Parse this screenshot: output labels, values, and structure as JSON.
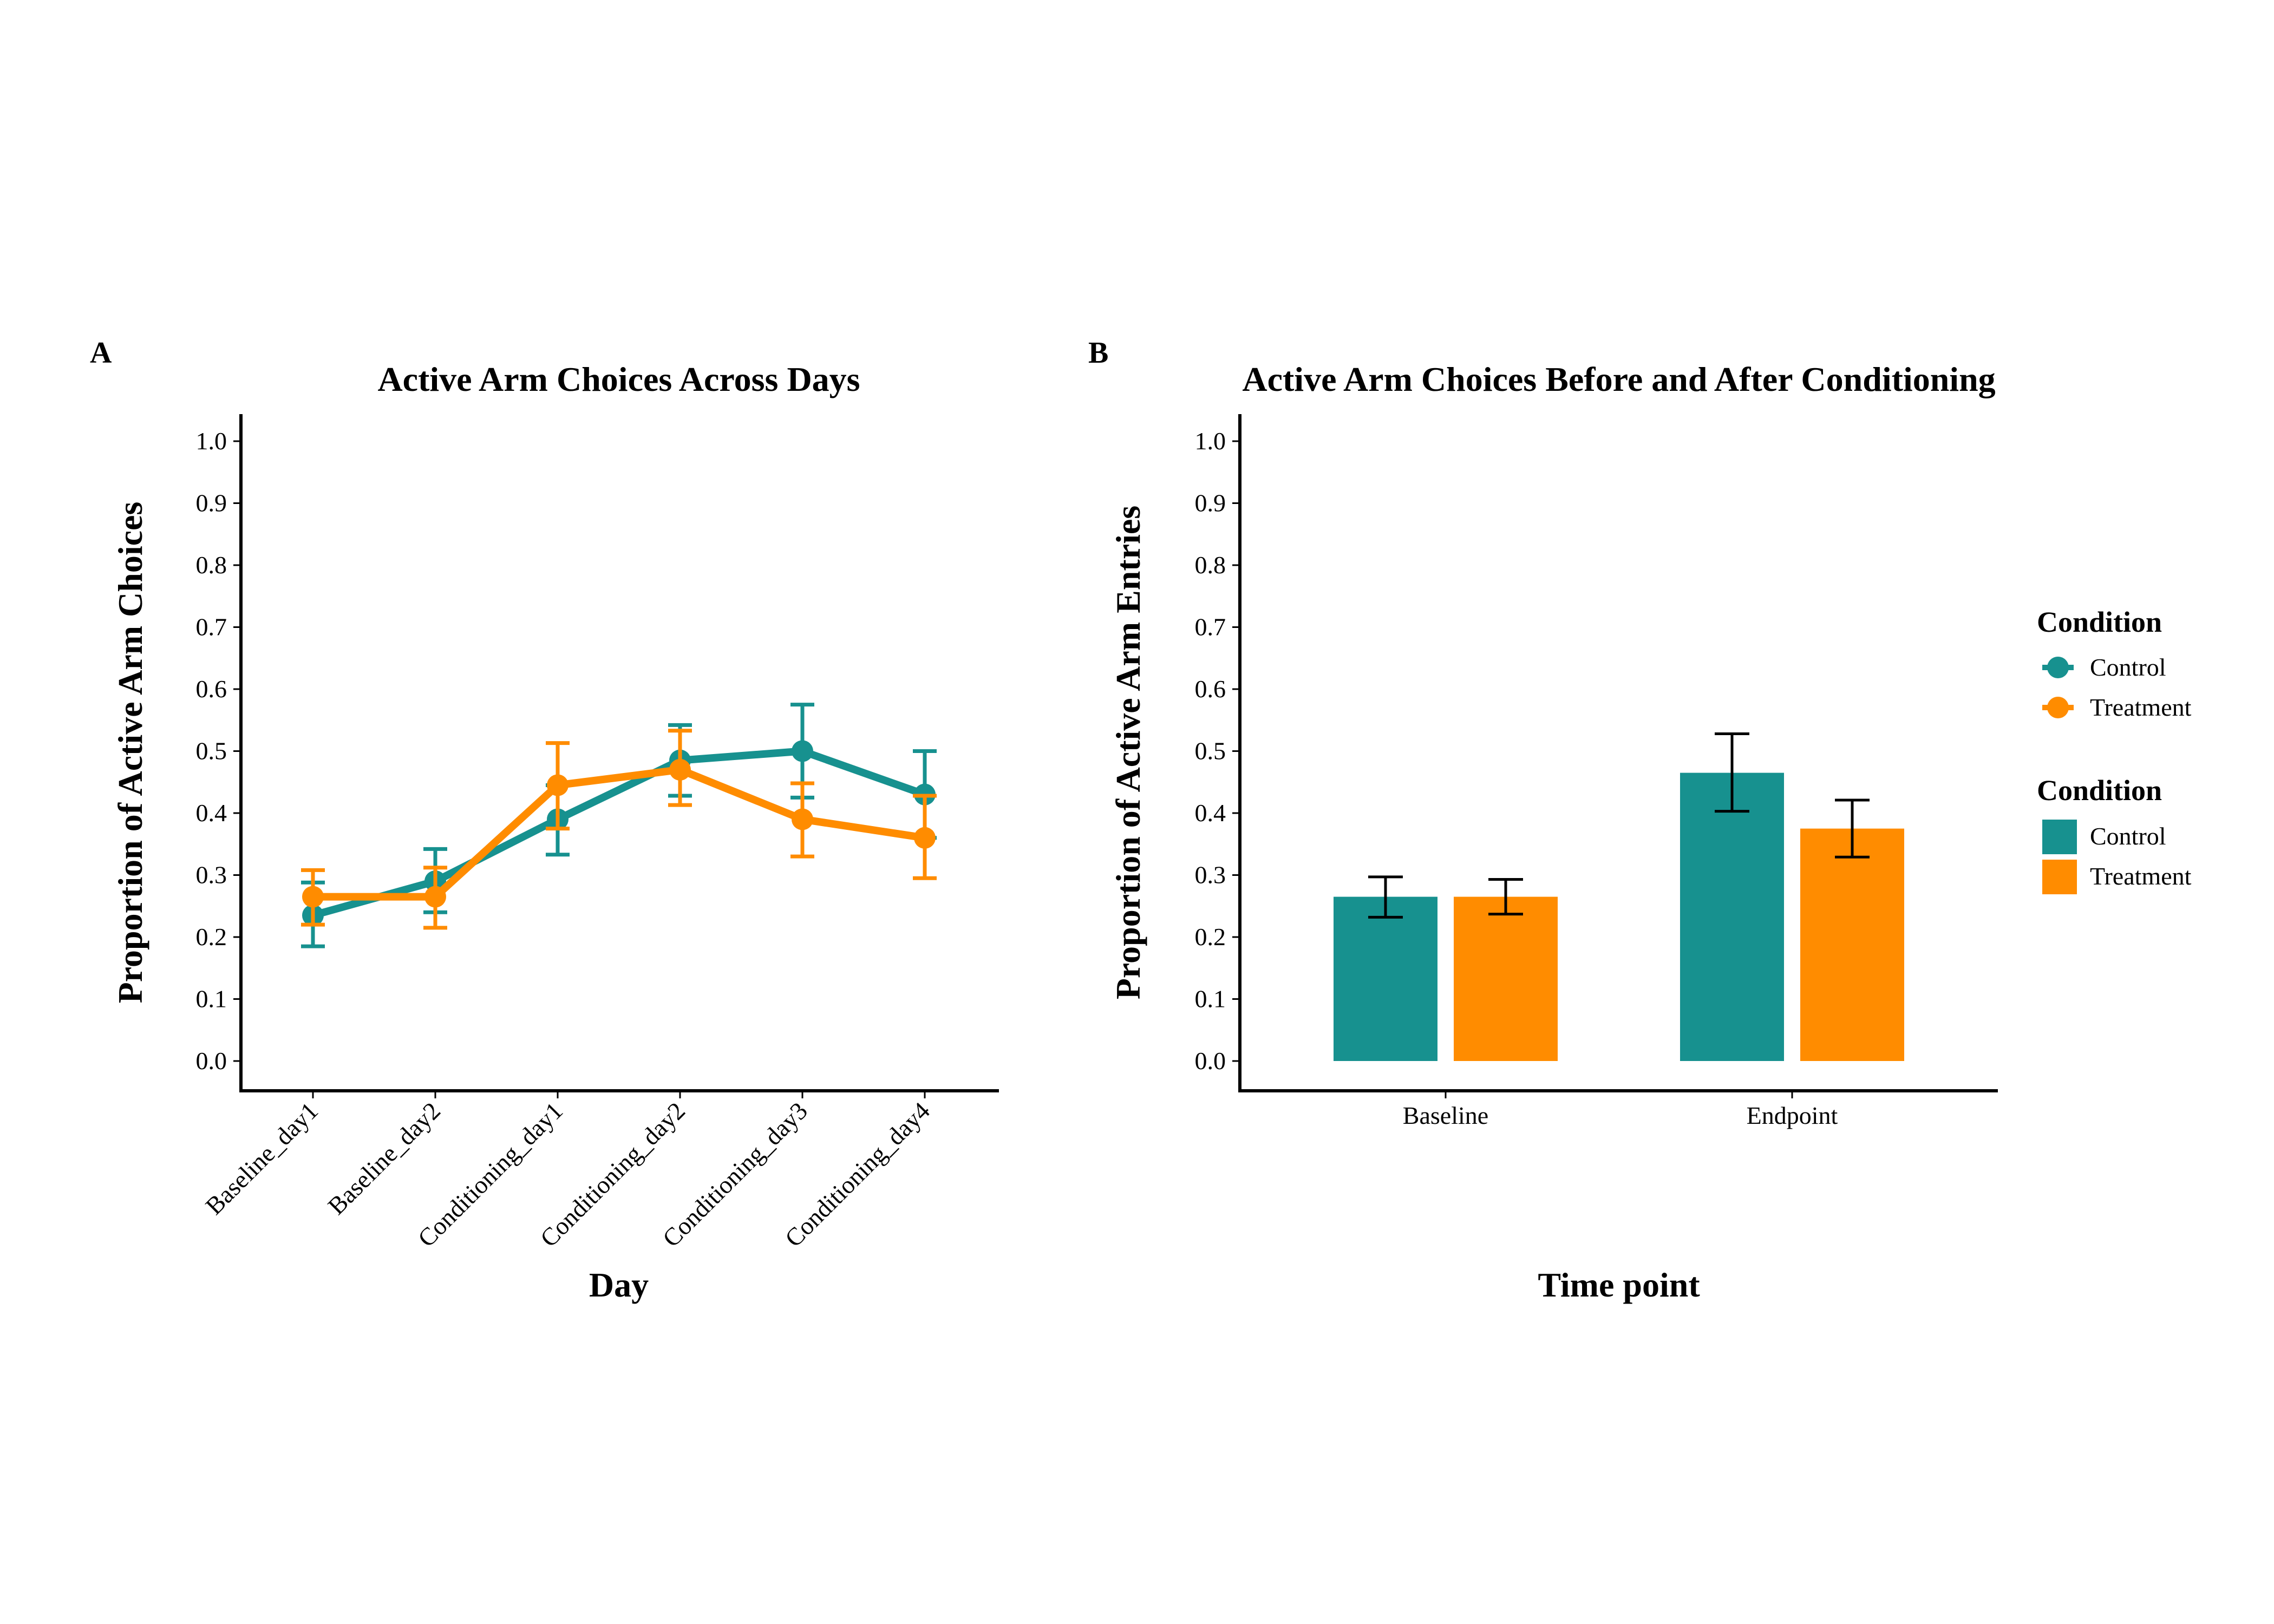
{
  "colors": {
    "control": "#17918F",
    "treatment": "#FF8C00",
    "errorbar_b": "#000000"
  },
  "legend": {
    "title_points": "Condition",
    "title_bars": "Condition",
    "items": [
      "Control",
      "Treatment"
    ]
  },
  "chart_data": [
    {
      "panel": "A",
      "type": "line",
      "title": "Active Arm Choices Across Days",
      "xlabel": "Day",
      "ylabel": "Proportion of Active Arm Choices",
      "ylim": [
        0,
        1
      ],
      "yticks": [
        "0.0",
        "0.1",
        "0.2",
        "0.3",
        "0.4",
        "0.5",
        "0.6",
        "0.7",
        "0.8",
        "0.9",
        "1.0"
      ],
      "categories": [
        "Baseline_day1",
        "Baseline_day2",
        "Conditioning_day1",
        "Conditioning_day2",
        "Conditioning_day3",
        "Conditioning_day4"
      ],
      "series": [
        {
          "name": "Control",
          "values": [
            0.235,
            0.29,
            0.39,
            0.485,
            0.5,
            0.43
          ],
          "err_low": [
            0.185,
            0.24,
            0.333,
            0.428,
            0.425,
            0.36
          ],
          "err_high": [
            0.288,
            0.342,
            0.445,
            0.542,
            0.575,
            0.5
          ]
        },
        {
          "name": "Treatment",
          "values": [
            0.265,
            0.265,
            0.445,
            0.47,
            0.39,
            0.36
          ],
          "err_low": [
            0.22,
            0.215,
            0.375,
            0.413,
            0.33,
            0.295
          ],
          "err_high": [
            0.308,
            0.312,
            0.513,
            0.533,
            0.448,
            0.428
          ]
        }
      ]
    },
    {
      "panel": "B",
      "type": "bar",
      "title": "Active Arm Choices Before and After Conditioning",
      "xlabel": "Time point",
      "ylabel": "Proportion of Active Arm Entries",
      "ylim": [
        0,
        1
      ],
      "yticks": [
        "0.0",
        "0.1",
        "0.2",
        "0.3",
        "0.4",
        "0.5",
        "0.6",
        "0.7",
        "0.8",
        "0.9",
        "1.0"
      ],
      "categories": [
        "Baseline",
        "Endpoint"
      ],
      "series": [
        {
          "name": "Control",
          "values": [
            0.265,
            0.465
          ],
          "err_low": [
            0.232,
            0.403
          ],
          "err_high": [
            0.297,
            0.528
          ]
        },
        {
          "name": "Treatment",
          "values": [
            0.265,
            0.375
          ],
          "err_low": [
            0.237,
            0.329
          ],
          "err_high": [
            0.293,
            0.421
          ]
        }
      ]
    }
  ]
}
